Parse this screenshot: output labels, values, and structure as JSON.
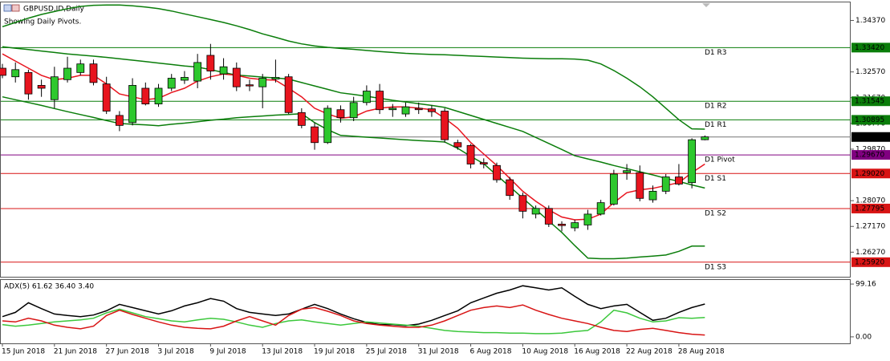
{
  "chart_data": [
    {
      "type": "candlestick",
      "title": "GBPUSD.ID,Daily",
      "subtitle": "Showing Daily Pivots.",
      "categories": [
        "15 Jun 2018",
        null,
        null,
        null,
        "21 Jun 2018",
        null,
        null,
        null,
        "27 Jun 2018",
        null,
        null,
        null,
        "3 Jul 2018",
        null,
        null,
        null,
        "9 Jul 2018",
        null,
        null,
        null,
        "13 Jul 2018",
        null,
        null,
        null,
        "19 Jul 2018",
        null,
        null,
        null,
        "25 Jul 2018",
        null,
        null,
        null,
        "31 Jul 2018",
        null,
        null,
        null,
        "6 Aug 2018",
        null,
        null,
        null,
        "10 Aug 2018",
        null,
        null,
        null,
        "16 Aug 2018",
        null,
        null,
        null,
        "22 Aug 2018",
        null,
        null,
        null,
        "28 Aug 2018",
        null,
        null
      ],
      "open": [
        1.327,
        1.324,
        1.3255,
        1.321,
        1.316,
        1.323,
        1.3255,
        1.3285,
        1.3215,
        1.3105,
        1.308,
        1.32,
        1.3145,
        1.32,
        1.3228,
        1.3225,
        1.3315,
        1.325,
        1.327,
        1.3212,
        1.3205,
        1.3232,
        1.324,
        1.3115,
        1.3065,
        1.301,
        1.3125,
        1.3097,
        1.315,
        1.319,
        1.3125,
        1.311,
        1.313,
        1.3128,
        1.312,
        1.301,
        1.3,
        1.294,
        1.293,
        1.288,
        1.2825,
        1.276,
        1.278,
        1.2725,
        1.2712,
        1.2722,
        1.276,
        1.2795,
        1.2905,
        1.2905,
        1.281,
        1.284,
        1.289,
        1.287,
        1.302
      ],
      "high": [
        1.3285,
        1.329,
        1.3265,
        1.323,
        1.3275,
        1.331,
        1.33,
        1.33,
        1.324,
        1.312,
        1.3235,
        1.322,
        1.3215,
        1.325,
        1.326,
        1.332,
        1.3355,
        1.3305,
        1.329,
        1.323,
        1.325,
        1.33,
        1.325,
        1.313,
        1.308,
        1.314,
        1.314,
        1.317,
        1.321,
        1.3215,
        1.3145,
        1.315,
        1.315,
        1.314,
        1.313,
        1.302,
        1.3005,
        1.2955,
        1.294,
        1.289,
        1.2835,
        1.279,
        1.279,
        1.2735,
        1.274,
        1.2775,
        1.281,
        1.2915,
        1.2935,
        1.293,
        1.286,
        1.29,
        1.2935,
        1.3025,
        1.3035
      ],
      "low": [
        1.3235,
        1.322,
        1.316,
        1.317,
        1.313,
        1.322,
        1.3245,
        1.321,
        1.311,
        1.305,
        1.307,
        1.314,
        1.3135,
        1.319,
        1.3215,
        1.32,
        1.323,
        1.323,
        1.319,
        1.319,
        1.313,
        1.322,
        1.311,
        1.306,
        1.2985,
        1.3005,
        1.308,
        1.3085,
        1.314,
        1.311,
        1.31,
        1.31,
        1.311,
        1.31,
        1.301,
        1.2985,
        1.292,
        1.292,
        1.287,
        1.281,
        1.2745,
        1.2745,
        1.2715,
        1.27,
        1.27,
        1.2705,
        1.2755,
        1.279,
        1.288,
        1.2805,
        1.28,
        1.283,
        1.286,
        1.285,
        1.3018
      ],
      "close": [
        1.3245,
        1.3265,
        1.318,
        1.32,
        1.324,
        1.327,
        1.3285,
        1.322,
        1.312,
        1.307,
        1.321,
        1.3145,
        1.32,
        1.3235,
        1.3238,
        1.329,
        1.326,
        1.3275,
        1.3205,
        1.3208,
        1.3235,
        1.3238,
        1.3115,
        1.307,
        1.301,
        1.313,
        1.3097,
        1.315,
        1.319,
        1.3125,
        1.313,
        1.3135,
        1.3125,
        1.3118,
        1.302,
        1.2995,
        1.2935,
        1.2935,
        1.288,
        1.2825,
        1.277,
        1.278,
        1.2725,
        1.272,
        1.273,
        1.276,
        1.28,
        1.29,
        1.2912,
        1.2815,
        1.284,
        1.289,
        1.2865,
        1.302,
        1.303
      ],
      "up_color": "#2ec82e",
      "down_color": "#e8141e",
      "series": [
        {
          "color": "#0a7d0a",
          "values": [
            1.3415,
            1.343,
            1.3445,
            1.3458,
            1.3468,
            1.3478,
            1.3486,
            1.349,
            1.3491,
            1.3491,
            1.3488,
            1.3484,
            1.3478,
            1.347,
            1.346,
            1.345,
            1.344,
            1.343,
            1.3418,
            1.3405,
            1.339,
            1.3378,
            1.3365,
            1.3355,
            1.3348,
            1.3343,
            1.3339,
            1.3336,
            1.3332,
            1.3328,
            1.3325,
            1.3322,
            1.332,
            1.3318,
            1.3317,
            1.3315,
            1.3313,
            1.3311,
            1.3309,
            1.3307,
            1.3305,
            1.3304,
            1.3303,
            1.3303,
            1.3302,
            1.3298,
            1.3285,
            1.3262,
            1.3235,
            1.3205,
            1.317,
            1.313,
            1.309,
            1.3058,
            1.3057
          ]
        },
        {
          "color": "#0a7d0a",
          "values": [
            1.3345,
            1.334,
            1.3335,
            1.333,
            1.3325,
            1.332,
            1.3316,
            1.3312,
            1.3308,
            1.3303,
            1.3298,
            1.3293,
            1.3288,
            1.3283,
            1.3278,
            1.3274,
            1.3265,
            1.3255,
            1.3246,
            1.3243,
            1.3239,
            1.3236,
            1.3232,
            1.322,
            1.3208,
            1.3196,
            1.3184,
            1.3178,
            1.3172,
            1.3165,
            1.3158,
            1.3152,
            1.3146,
            1.314,
            1.3133,
            1.3119,
            1.3105,
            1.3091,
            1.3077,
            1.3063,
            1.3049,
            1.3028,
            1.3007,
            1.2986,
            1.2964,
            1.2953,
            1.2942,
            1.293,
            1.2919,
            1.2908,
            1.2897,
            1.2885,
            1.2874,
            1.2862,
            1.2851
          ]
        },
        {
          "color": "#0a7d0a",
          "values": [
            1.317,
            1.316,
            1.315,
            1.314,
            1.3129,
            1.3118,
            1.3108,
            1.3098,
            1.3087,
            1.3077,
            1.3074,
            1.3072,
            1.3069,
            1.3074,
            1.3078,
            1.3083,
            1.3088,
            1.3092,
            1.3097,
            1.31,
            1.3103,
            1.3106,
            1.3108,
            1.3111,
            1.308,
            1.3055,
            1.3035,
            1.3032,
            1.3029,
            1.3026,
            1.3023,
            1.302,
            1.3017,
            1.3015,
            1.3012,
            1.299,
            1.2962,
            1.2936,
            1.2896,
            1.2856,
            1.2816,
            1.2776,
            1.2736,
            1.2696,
            1.265,
            1.2606,
            1.2604,
            1.2604,
            1.2606,
            1.261,
            1.2613,
            1.2617,
            1.263,
            1.2648,
            1.2648
          ]
        },
        {
          "color": "#e8141e",
          "values": [
            1.332,
            1.3295,
            1.327,
            1.3245,
            1.323,
            1.3235,
            1.3245,
            1.3245,
            1.3215,
            1.318,
            1.317,
            1.316,
            1.3165,
            1.3185,
            1.32,
            1.3225,
            1.324,
            1.325,
            1.3245,
            1.3235,
            1.323,
            1.3228,
            1.32,
            1.317,
            1.313,
            1.311,
            1.3095,
            1.31,
            1.312,
            1.313,
            1.3135,
            1.3135,
            1.313,
            1.3125,
            1.3095,
            1.306,
            1.301,
            1.297,
            1.293,
            1.2885,
            1.284,
            1.2805,
            1.2775,
            1.275,
            1.274,
            1.2742,
            1.276,
            1.28,
            1.2835,
            1.2845,
            1.285,
            1.286,
            1.287,
            1.2905,
            1.2935
          ]
        }
      ],
      "levels": [
        {
          "name": "D1 R3",
          "value": 1.3342,
          "label": "1.33420",
          "color": "#0a7d0a"
        },
        {
          "name": "D1 R2",
          "value": 1.31545,
          "label": "1.31545",
          "color": "#0a7d0a"
        },
        {
          "name": "D1 R1",
          "value": 1.30895,
          "label": "1.30895",
          "color": "#0a7d0a"
        },
        {
          "name": "D1 Pivot",
          "value": 1.2967,
          "label": "1.29670",
          "color": "#800080"
        },
        {
          "name": "D1 S1",
          "value": 1.2902,
          "label": "1.29020",
          "color": "#d81414"
        },
        {
          "name": "D1 S2",
          "value": 1.27795,
          "label": "1.27795",
          "color": "#d81414"
        },
        {
          "name": "D1 S3",
          "value": 1.2592,
          "label": "1.25920",
          "color": "#d81414"
        }
      ],
      "last_price": {
        "value": 1.30296,
        "label": "1.30296",
        "color": "#000000"
      },
      "ylim": [
        1.2541,
        1.35
      ],
      "yticks": [
        {
          "value": 1.3437,
          "label": "1.34370"
        },
        {
          "value": 1.3257,
          "label": "1.32570"
        },
        {
          "value": 1.3167,
          "label": "1.31670"
        },
        {
          "value": 1.3077,
          "label": "1.30770"
        },
        {
          "value": 1.2987,
          "label": "1.29870"
        },
        {
          "value": 1.2807,
          "label": "1.28070"
        },
        {
          "value": 1.2717,
          "label": "1.27170"
        },
        {
          "value": 1.2627,
          "label": "1.26270"
        }
      ]
    },
    {
      "type": "line",
      "title": "ADX(5) 61.62 36.40 3.40",
      "series": [
        {
          "color": "#000000",
          "values": [
            38,
            46,
            64,
            53,
            43,
            40,
            38,
            41,
            49,
            61,
            55,
            49,
            43,
            49,
            58,
            64,
            72,
            67,
            53,
            46,
            43,
            40,
            43,
            52,
            61,
            53,
            43,
            34,
            27,
            23,
            23,
            21,
            24,
            31,
            40,
            49,
            64,
            73,
            82,
            88,
            96,
            92,
            88,
            92,
            76,
            61,
            53,
            58,
            61,
            46,
            31,
            35,
            46,
            55,
            61.62
          ]
        },
        {
          "color": "#3cc83c",
          "values": [
            23,
            20,
            22,
            25,
            28,
            30,
            32,
            35,
            45,
            52,
            45,
            38,
            34,
            30,
            28,
            32,
            35,
            33,
            28,
            22,
            18,
            25,
            30,
            32,
            28,
            25,
            22,
            25,
            28,
            26,
            24,
            22,
            20,
            16,
            12,
            10,
            9,
            8,
            8,
            7,
            7,
            6,
            6,
            7,
            10,
            12,
            28,
            50,
            45,
            35,
            28,
            30,
            36,
            35,
            36.4
          ]
        },
        {
          "color": "#d81414",
          "values": [
            30,
            28,
            35,
            30,
            22,
            18,
            15,
            20,
            40,
            50,
            42,
            35,
            28,
            22,
            18,
            16,
            15,
            20,
            30,
            38,
            30,
            22,
            40,
            52,
            55,
            48,
            40,
            30,
            25,
            22,
            20,
            18,
            18,
            22,
            30,
            40,
            50,
            55,
            58,
            55,
            60,
            50,
            42,
            35,
            30,
            25,
            18,
            12,
            10,
            14,
            16,
            12,
            8,
            5,
            3.4
          ]
        }
      ],
      "ylim": [
        -12.2,
        106.8
      ],
      "yticks": [
        99.16,
        {
          "value": 0,
          "label": "0.00"
        }
      ]
    }
  ]
}
